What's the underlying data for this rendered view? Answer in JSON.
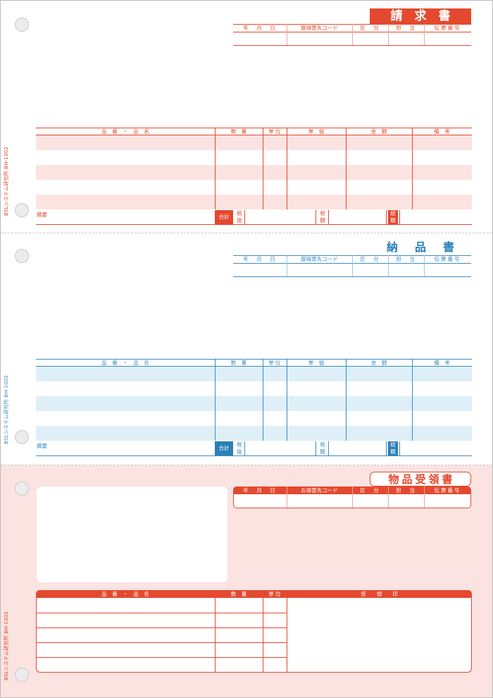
{
  "side_code": "BSLシステム研究所 BH-1002",
  "invoice": {
    "title": "請求書",
    "header_cols": [
      "年　月　日",
      "御得意先コード",
      "区　分",
      "担　当",
      "伝票番号"
    ],
    "table_cols": [
      "品　番　・　品　名",
      "数　量",
      "単 位",
      "単　価",
      "金　額",
      "備　考"
    ],
    "footer": {
      "summary": "摘要",
      "total": "合計",
      "tax_excl_1": "税",
      "tax_excl_2": "抜",
      "tax_1": "税",
      "tax_2": "額",
      "grand_1": "総",
      "grand_2": "額"
    }
  },
  "delivery": {
    "title": "納品書",
    "header_cols": [
      "年　月　日",
      "御得意先コード",
      "区　分",
      "担　当",
      "伝票番号"
    ],
    "table_cols": [
      "品　番　・　品　名",
      "数　量",
      "単 位",
      "単　価",
      "金　額",
      "備　考"
    ],
    "footer": {
      "summary": "摘要",
      "total": "合計",
      "tax_excl_1": "税",
      "tax_excl_2": "抜",
      "tax_1": "税",
      "tax_2": "額",
      "grand_1": "総",
      "grand_2": "額"
    }
  },
  "receipt": {
    "title": "物品受領書",
    "header_cols": [
      "年　月　日",
      "お得意先コード",
      "区　分",
      "担　当",
      "伝票番号"
    ],
    "table_cols": [
      "品　番　・　品　名",
      "数　量",
      "単 位",
      "受　　領　　印"
    ]
  },
  "colors": {
    "red": "#e4492f",
    "blue": "#2a7fb8",
    "pink": "#fbe3e1",
    "light_blue": "#deeff8"
  }
}
